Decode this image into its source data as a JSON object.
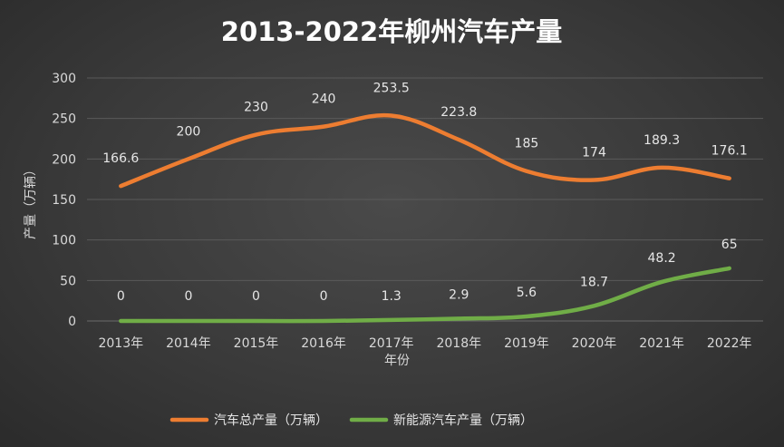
{
  "chart_data": {
    "type": "line",
    "title": "2013-2022年柳州汽车产量",
    "xlabel": "年份",
    "ylabel": "产量（万辆）",
    "categories": [
      "2013年",
      "2014年",
      "2015年",
      "2016年",
      "2017年",
      "2018年",
      "2019年",
      "2020年",
      "2021年",
      "2022年"
    ],
    "ylim": [
      0,
      300
    ],
    "yticks": [
      0,
      50,
      100,
      150,
      200,
      250,
      300
    ],
    "grid": true,
    "legend_position": "bottom",
    "series": [
      {
        "name": "汽车总产量（万辆）",
        "color": "#ed7d31",
        "values": [
          166.6,
          200,
          230,
          240,
          253.5,
          223.8,
          185,
          174,
          189.3,
          176.1
        ],
        "labels": [
          "166.6",
          "200",
          "230",
          "240",
          "253.5",
          "223.8",
          "185",
          "174",
          "189.3",
          "176.1"
        ]
      },
      {
        "name": "新能源汽车产量（万辆）",
        "color": "#70ad47",
        "values": [
          0,
          0,
          0,
          0,
          1.3,
          2.9,
          5.6,
          18.7,
          48.2,
          65
        ],
        "labels": [
          "0",
          "0",
          "0",
          "0",
          "1.3",
          "2.9",
          "5.6",
          "18.7",
          "48.2",
          "65"
        ]
      }
    ]
  }
}
